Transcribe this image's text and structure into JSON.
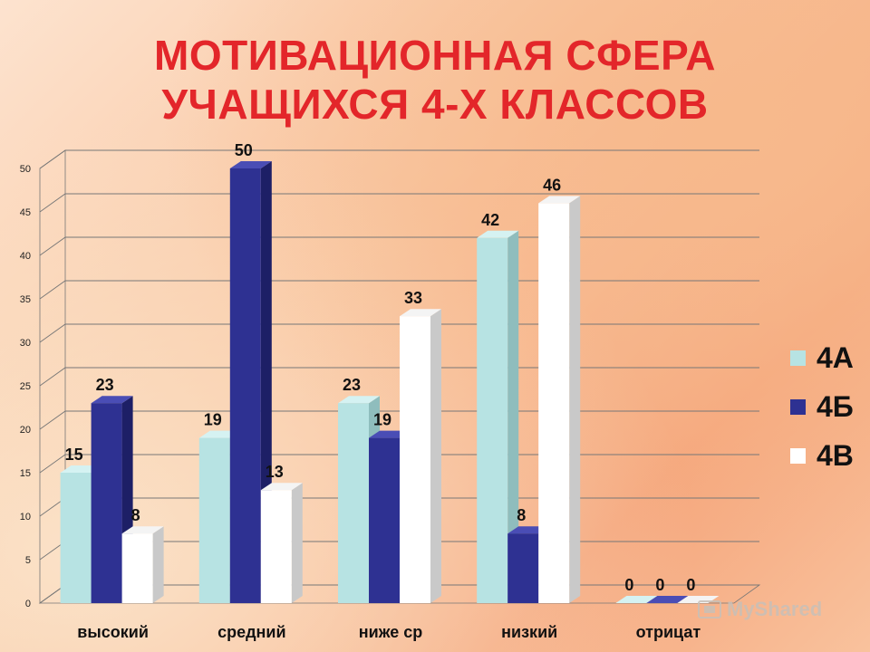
{
  "title": {
    "line1": "МОТИВАЦИОННАЯ СФЕРА",
    "line2": "УЧАЩИХСЯ 4-Х КЛАССОВ"
  },
  "colors": {
    "title": "#e3262a",
    "series": [
      "#b7e3e3",
      "#2e3192",
      "#ffffff"
    ],
    "series_top": [
      "#d5f2f2",
      "#4a4db5",
      "#f4f4f4"
    ],
    "series_side": [
      "#8fbdbd",
      "#1d1f66",
      "#c9c9c9"
    ],
    "grid": "#777777"
  },
  "watermark": "MyShared",
  "chart_data": {
    "type": "bar",
    "categories": [
      "высокий",
      "средний",
      "ниже ср",
      "низкий",
      "отрицат"
    ],
    "series": [
      {
        "name": "4А",
        "values": [
          15,
          19,
          23,
          42,
          0
        ]
      },
      {
        "name": "4Б",
        "values": [
          23,
          50,
          19,
          8,
          0
        ]
      },
      {
        "name": "4В",
        "values": [
          8,
          13,
          33,
          46,
          0
        ]
      }
    ],
    "yticks": [
      "0",
      "5",
      "10",
      "15",
      "20",
      "25",
      "30",
      "35",
      "40",
      "45",
      "50"
    ],
    "ylim": [
      0,
      50
    ],
    "grid": true,
    "three_d": true,
    "data_labels": true,
    "legend": "right"
  }
}
